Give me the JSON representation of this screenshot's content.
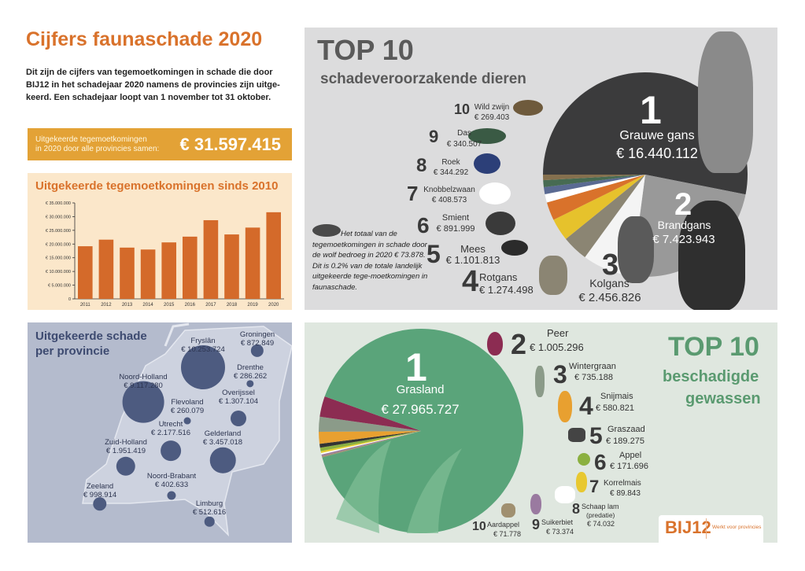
{
  "title": "Cijfers faunaschade 2020",
  "intro": "Dit zijn de cijfers van tegemoetkomingen in schade die door BIJ12 in het schadejaar 2020 namens de provincies zijn uitge-keerd. Een schadejaar loopt van 1 november tot 31 oktober.",
  "total": {
    "label_line1": "Uitgekeerde tegemoetkomingen",
    "label_line2": "in 2020 door alle provincies samen:",
    "value": "€ 31.597.415"
  },
  "colors": {
    "orange": "#d9722b",
    "box": "#e3a236",
    "bar": "#d46a2a",
    "map_bubble": "#4d5b80",
    "green_title": "#5a9a70",
    "grass": "#5aa47a"
  },
  "chart_data": [
    {
      "type": "bar",
      "title": "Uitgekeerde tegemoetkomingen sinds 2010",
      "categories": [
        "2011",
        "2012",
        "2013",
        "2014",
        "2015",
        "2016",
        "2017",
        "2018",
        "2019",
        "2020"
      ],
      "values": [
        19200000,
        21600000,
        18700000,
        18000000,
        20600000,
        22700000,
        28700000,
        23500000,
        26000000,
        31600000
      ],
      "yticks": [
        "0",
        "€ 5.000.000",
        "€ 10.000.000",
        "€ 15.000.000",
        "€ 20.000.000",
        "€ 25.000.000",
        "€ 30.000.000",
        "€ 35.000.000"
      ],
      "ylim": [
        0,
        35000000
      ],
      "grid": false
    },
    {
      "type": "pie",
      "title": "TOP 10",
      "subtitle": "schadeveroorzakende dieren",
      "slices": [
        {
          "rank": "1",
          "name": "Grauwe gans",
          "label": "€ 16.440.112",
          "value": 16440112,
          "color": "#3b3b3c"
        },
        {
          "rank": "2",
          "name": "Brandgans",
          "label": "€ 7.423.943",
          "value": 7423943,
          "color": "#999999"
        },
        {
          "rank": "3",
          "name": "Kolgans",
          "label": "€ 2.456.826",
          "value": 2456826,
          "color": "#f4f4f4"
        },
        {
          "rank": "4",
          "name": "Rotgans",
          "label": "€ 1.274.498",
          "value": 1274498,
          "color": "#8b8573"
        },
        {
          "rank": "5",
          "name": "Mees",
          "label": "€ 1.101.813",
          "value": 1101813,
          "color": "#e6c22c"
        },
        {
          "rank": "6",
          "name": "Smient",
          "label": "€ 891.999",
          "value": 891999,
          "color": "#d9722b"
        },
        {
          "rank": "7",
          "name": "Knobbelzwaan",
          "label": "€ 408.573",
          "value": 408573,
          "color": "#ffffff"
        },
        {
          "rank": "8",
          "name": "Roek",
          "label": "€ 344.292",
          "value": 344292,
          "color": "#5a6a92"
        },
        {
          "rank": "9",
          "name": "Das",
          "label": "€ 340.507",
          "value": 340507,
          "color": "#476b52"
        },
        {
          "rank": "10",
          "name": "Wild zwijn",
          "label": "€ 269.403",
          "value": 269403,
          "color": "#85704e"
        }
      ]
    },
    {
      "type": "pie",
      "title": "TOP 10",
      "subtitle_line1": "beschadigde",
      "subtitle_line2": "gewassen",
      "slices": [
        {
          "rank": "1",
          "name": "Grasland",
          "label": "€ 27.965.727",
          "value": 27965727,
          "color": "#5aa47a"
        },
        {
          "rank": "2",
          "name": "Peer",
          "label": "€ 1.005.296",
          "value": 1005296,
          "color": "#8c2c52"
        },
        {
          "rank": "3",
          "name": "Wintergraan",
          "label": "€ 735.188",
          "value": 735188,
          "color": "#8b9b89"
        },
        {
          "rank": "4",
          "name": "Snijmais",
          "label": "€ 580.821",
          "value": 580821,
          "color": "#e8a030"
        },
        {
          "rank": "5",
          "name": "Graszaad",
          "label": "€ 189.275",
          "value": 189275,
          "color": "#333333"
        },
        {
          "rank": "6",
          "name": "Appel",
          "label": "€ 171.696",
          "value": 171696,
          "color": "#8bb040"
        },
        {
          "rank": "7",
          "name": "Korrelmais",
          "label": "€ 89.843",
          "value": 89843,
          "color": "#e8d030"
        },
        {
          "rank": "8",
          "name": "Schaap lam",
          "note": "(predatie)",
          "label": "€ 74.032",
          "value": 74032,
          "color": "#ffffff"
        },
        {
          "rank": "9",
          "name": "Suikerbiet",
          "label": "€ 73.374",
          "value": 73374,
          "color": "#9a7aa0"
        },
        {
          "rank": "10",
          "name": "Aardappel",
          "label": "€ 71.778",
          "value": 71778,
          "color": "#a09070"
        }
      ]
    }
  ],
  "wolf_note": "Het totaal van de tegemoetkomingen in schade door de wolf bedroeg in 2020 € 73.878. Dit is 0.2% van de totale landelijk uitgekeerde tege-moetkomingen in faunaschade.",
  "map": {
    "title_line1": "Uitgekeerde schade",
    "title_line2": "per provincie",
    "provinces": [
      {
        "name": "Fryslân",
        "value": "€ 10.253.724",
        "amount": 10253724
      },
      {
        "name": "Groningen",
        "value": "€ 872.849",
        "amount": 872849
      },
      {
        "name": "Noord-Holland",
        "value": "€ 9.117.280",
        "amount": 9117280
      },
      {
        "name": "Drenthe",
        "value": "€ 286.262",
        "amount": 286262
      },
      {
        "name": "Flevoland",
        "value": "€ 260.079",
        "amount": 260079
      },
      {
        "name": "Overijssel",
        "value": "€ 1.307.104",
        "amount": 1307104
      },
      {
        "name": "Utrecht",
        "value": "€ 2.177.516",
        "amount": 2177516
      },
      {
        "name": "Gelderland",
        "value": "€ 3.457.018",
        "amount": 3457018
      },
      {
        "name": "Zuid-Holland",
        "value": "€ 1.951.419",
        "amount": 1951419
      },
      {
        "name": "Zeeland",
        "value": "€ 998.914",
        "amount": 998914
      },
      {
        "name": "Noord-Brabant",
        "value": "€ 402.633",
        "amount": 402633
      },
      {
        "name": "Limburg",
        "value": "€ 512.616",
        "amount": 512616
      }
    ]
  },
  "logo": {
    "text": "BIJ12",
    "tagline": "Werkt voor provincies"
  }
}
